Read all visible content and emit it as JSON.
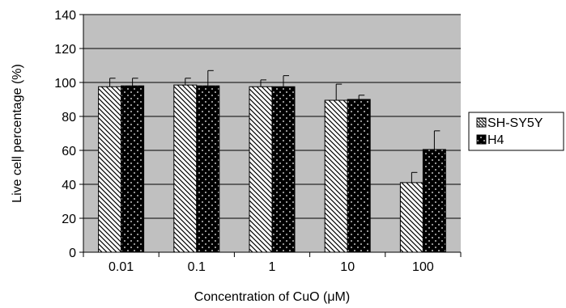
{
  "chart_data": {
    "type": "bar",
    "categories": [
      "0.01",
      "0.1",
      "1",
      "10",
      "100"
    ],
    "series": [
      {
        "name": "SH-SY5Y",
        "values": [
          97.5,
          98.5,
          97.5,
          89.5,
          41
        ],
        "errors": [
          5,
          4,
          4,
          9.5,
          6
        ],
        "pattern": "diagonal-hatch"
      },
      {
        "name": "H4",
        "values": [
          98,
          98,
          97.5,
          90,
          60.5
        ],
        "errors": [
          4.5,
          9,
          6.5,
          2.5,
          11
        ],
        "pattern": "black-with-white-dots"
      }
    ],
    "xlabel": "Concentration of CuO (μM)",
    "ylabel": "Live cell percentage  (%)",
    "ylim": [
      0,
      140
    ],
    "yticks": [
      0,
      20,
      40,
      60,
      80,
      100,
      120,
      140
    ],
    "grid": "horizontal",
    "legend_position": "right",
    "colors": {
      "plot_background": "#c0c0c0",
      "bar_dark": "#000000",
      "bar_light": "#ffffff",
      "stroke": "#000000"
    }
  }
}
